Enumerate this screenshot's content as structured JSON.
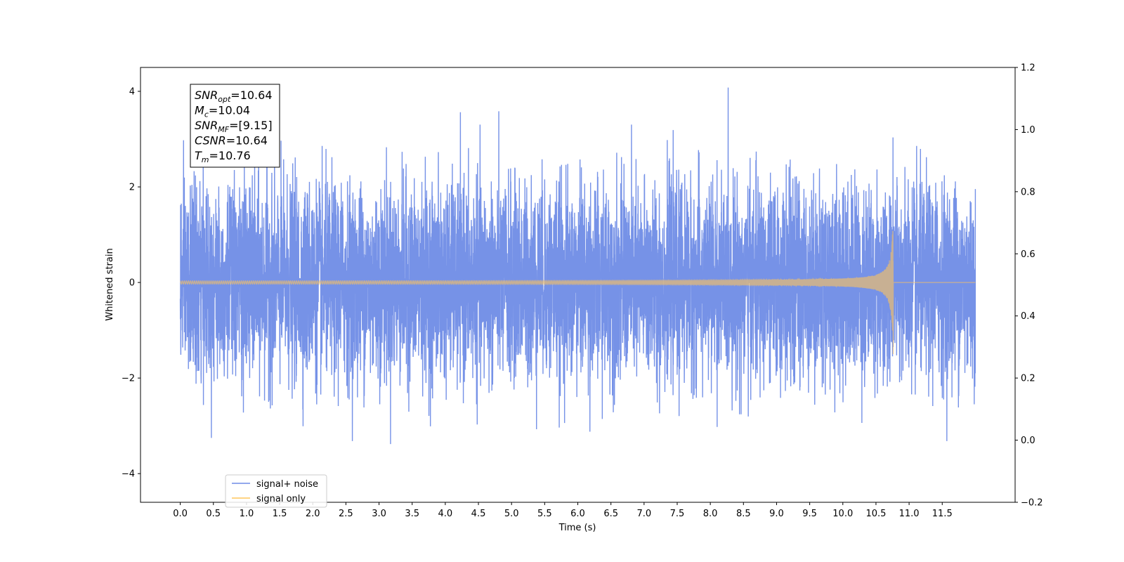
{
  "chart_data": {
    "type": "line",
    "title": "",
    "xlabel": "Time (s)",
    "ylabel": "Whitened strain",
    "xlim": [
      -0.6,
      12.6
    ],
    "ylim": [
      -4.6,
      4.5
    ],
    "ylim_right": [
      -0.2,
      1.2
    ],
    "x_ticks": [
      "0.0",
      "0.5",
      "1.0",
      "1.5",
      "2.0",
      "2.5",
      "3.0",
      "3.5",
      "4.0",
      "4.5",
      "5.0",
      "5.5",
      "6.0",
      "6.5",
      "7.0",
      "7.5",
      "8.0",
      "8.5",
      "9.0",
      "9.5",
      "10.0",
      "10.5",
      "11.0",
      "11.5"
    ],
    "y_ticks": [
      "−4",
      "−2",
      "0",
      "2",
      "4"
    ],
    "y_ticks_right": [
      "−0.2",
      "0.0",
      "0.2",
      "0.4",
      "0.6",
      "0.8",
      "1.0",
      "1.2"
    ],
    "grid": false,
    "legend": {
      "position": "lower-left",
      "entries": [
        {
          "name": "signal+ noise",
          "color": "#6f8ce6"
        },
        {
          "name": "signal only",
          "color": "#ffc55c"
        }
      ]
    },
    "annotation_box": {
      "position": "top-left",
      "lines": [
        {
          "label": "SNR",
          "sub": "opt",
          "value": "=10.64"
        },
        {
          "label": "M",
          "sub": "c",
          "value": "=10.04"
        },
        {
          "label": "SNR",
          "sub": "MF",
          "value": "=[9.15]"
        },
        {
          "label": "CSNR",
          "sub": "",
          "value": "=10.64"
        },
        {
          "label": "T",
          "sub": "m",
          "value": "=10.76"
        }
      ]
    },
    "series": [
      {
        "name": "signal+ noise",
        "color": "#6f8ce6",
        "x_range": [
          0.0,
          12.0
        ],
        "noise_std": 1.0,
        "noise_max": 4.08,
        "noise_min": -4.22
      },
      {
        "name": "signal only",
        "color": "#ffc55c",
        "x_range": [
          0.0,
          12.0
        ],
        "merger_time": 10.76,
        "peak_amplitude": 1.65,
        "min_amplitude": -1.5
      }
    ]
  }
}
